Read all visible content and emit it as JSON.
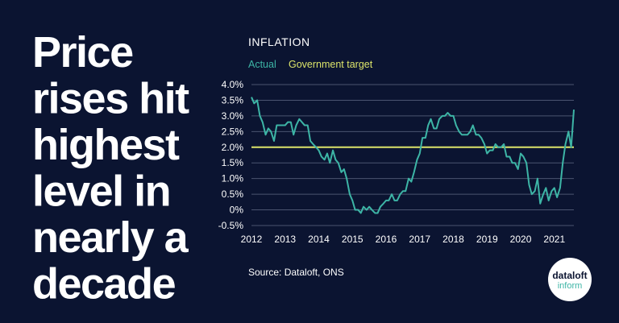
{
  "headline": [
    "Price",
    "rises hit",
    "highest",
    "level in",
    "nearly a",
    "decade"
  ],
  "source": "Source: Dataloft, ONS",
  "logo": {
    "top": "dataloft",
    "bottom": "inform"
  },
  "chart_data": {
    "type": "line",
    "title": "INFLATION",
    "x": [
      2012.0,
      2012.08,
      2012.17,
      2012.25,
      2012.33,
      2012.42,
      2012.5,
      2012.58,
      2012.67,
      2012.75,
      2012.83,
      2012.92,
      2013.0,
      2013.08,
      2013.17,
      2013.25,
      2013.33,
      2013.42,
      2013.5,
      2013.58,
      2013.67,
      2013.75,
      2013.83,
      2013.92,
      2014.0,
      2014.08,
      2014.17,
      2014.25,
      2014.33,
      2014.42,
      2014.5,
      2014.58,
      2014.67,
      2014.75,
      2014.83,
      2014.92,
      2015.0,
      2015.08,
      2015.17,
      2015.25,
      2015.33,
      2015.42,
      2015.5,
      2015.58,
      2015.67,
      2015.75,
      2015.83,
      2015.92,
      2016.0,
      2016.08,
      2016.17,
      2016.25,
      2016.33,
      2016.42,
      2016.5,
      2016.58,
      2016.67,
      2016.75,
      2016.83,
      2016.92,
      2017.0,
      2017.08,
      2017.17,
      2017.25,
      2017.33,
      2017.42,
      2017.5,
      2017.58,
      2017.67,
      2017.75,
      2017.83,
      2017.92,
      2018.0,
      2018.08,
      2018.17,
      2018.25,
      2018.33,
      2018.42,
      2018.5,
      2018.58,
      2018.67,
      2018.75,
      2018.83,
      2018.92,
      2019.0,
      2019.08,
      2019.17,
      2019.25,
      2019.33,
      2019.42,
      2019.5,
      2019.58,
      2019.67,
      2019.75,
      2019.83,
      2019.92,
      2020.0,
      2020.08,
      2020.17,
      2020.25,
      2020.33,
      2020.42,
      2020.5,
      2020.58,
      2020.67,
      2020.75,
      2020.83,
      2020.92,
      2021.0,
      2021.08,
      2021.17,
      2021.25,
      2021.33,
      2021.42,
      2021.5,
      2021.58
    ],
    "series": [
      {
        "name": "Actual",
        "color": "#3db5a6",
        "values": [
          3.6,
          3.4,
          3.5,
          3.0,
          2.8,
          2.4,
          2.6,
          2.5,
          2.2,
          2.7,
          2.7,
          2.7,
          2.7,
          2.8,
          2.8,
          2.4,
          2.7,
          2.9,
          2.8,
          2.7,
          2.7,
          2.2,
          2.1,
          2.0,
          1.9,
          1.7,
          1.6,
          1.8,
          1.5,
          1.9,
          1.6,
          1.5,
          1.2,
          1.3,
          1.0,
          0.5,
          0.3,
          0.0,
          0.0,
          -0.1,
          0.1,
          0.0,
          0.1,
          0.0,
          -0.1,
          -0.1,
          0.1,
          0.2,
          0.3,
          0.3,
          0.5,
          0.3,
          0.3,
          0.5,
          0.6,
          0.6,
          1.0,
          0.9,
          1.2,
          1.6,
          1.8,
          2.3,
          2.3,
          2.7,
          2.9,
          2.6,
          2.6,
          2.9,
          3.0,
          3.0,
          3.1,
          3.0,
          3.0,
          2.7,
          2.5,
          2.4,
          2.4,
          2.4,
          2.5,
          2.7,
          2.4,
          2.4,
          2.3,
          2.1,
          1.8,
          1.9,
          1.9,
          2.1,
          2.0,
          2.0,
          2.1,
          1.7,
          1.7,
          1.5,
          1.5,
          1.3,
          1.8,
          1.7,
          1.5,
          0.8,
          0.5,
          0.6,
          1.0,
          0.2,
          0.5,
          0.7,
          0.3,
          0.6,
          0.7,
          0.4,
          0.7,
          1.5,
          2.1,
          2.5,
          2.0,
          3.2
        ]
      }
    ],
    "target": {
      "name": "Government target",
      "color": "#dce46a",
      "value": 2
    },
    "xlim": [
      2012,
      2021.58
    ],
    "xticks": [
      2012,
      2013,
      2014,
      2015,
      2016,
      2017,
      2018,
      2019,
      2020,
      2021
    ],
    "ylim": [
      -0.5,
      4.0
    ],
    "yticks": [
      {
        "value": -0.5,
        "label": "-0.5%"
      },
      {
        "value": 0,
        "label": "0%"
      },
      {
        "value": 0.5,
        "label": "0.5%"
      },
      {
        "value": 1.0,
        "label": "1.0%"
      },
      {
        "value": 1.5,
        "label": "1.5%"
      },
      {
        "value": 2.0,
        "label": "2.0%"
      },
      {
        "value": 2.5,
        "label": "2.5%"
      },
      {
        "value": 3.0,
        "label": "3.0%"
      },
      {
        "value": 3.5,
        "label": "3.5%"
      },
      {
        "value": 4.0,
        "label": "4.0%"
      }
    ],
    "grid": true
  }
}
